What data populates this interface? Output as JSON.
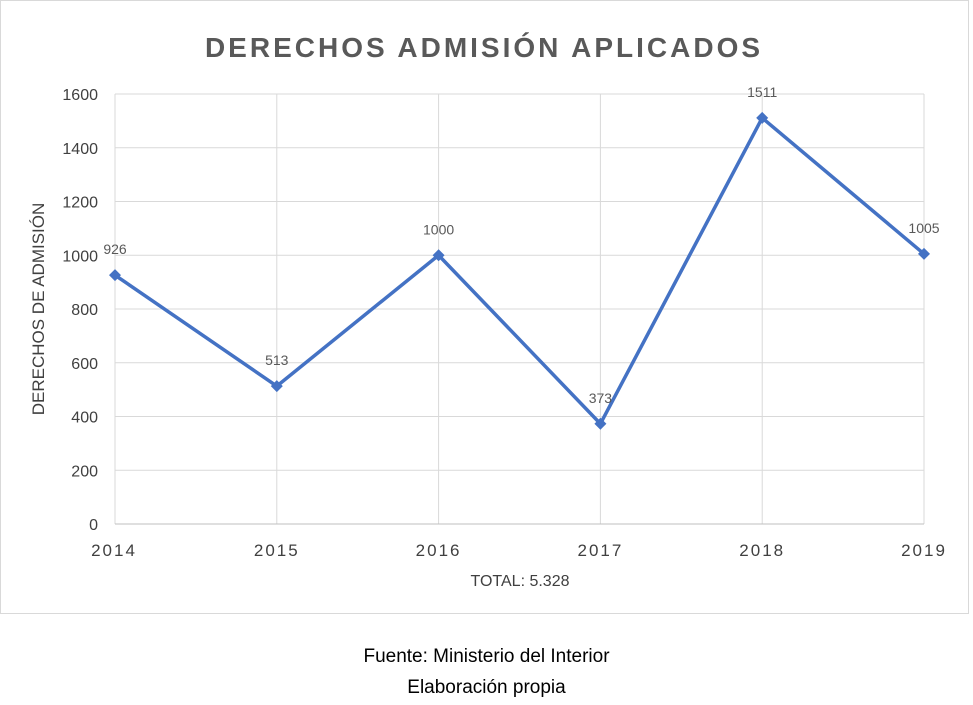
{
  "chart_data": {
    "type": "line",
    "title": "DERECHOS ADMISIÓN APLICADOS",
    "xlabel": "TOTAL: 5.328",
    "ylabel": "DERECHOS DE ADMISIÓN",
    "categories": [
      "2014",
      "2015",
      "2016",
      "2017",
      "2018",
      "2019"
    ],
    "series": [
      {
        "values": [
          926,
          513,
          1000,
          373,
          1511,
          1005
        ],
        "color": "#4472c4",
        "marker": "diamond"
      }
    ],
    "data_labels": [
      "926",
      "513",
      "1000",
      "373",
      "1511",
      "1005"
    ],
    "ylim": [
      0,
      1600
    ],
    "yticks": [
      0,
      200,
      400,
      600,
      800,
      1000,
      1200,
      1400,
      1600
    ],
    "grid": true,
    "legend": "none"
  },
  "caption": {
    "source": "Fuente: Ministerio del Interior",
    "credit": "Elaboración propia"
  }
}
